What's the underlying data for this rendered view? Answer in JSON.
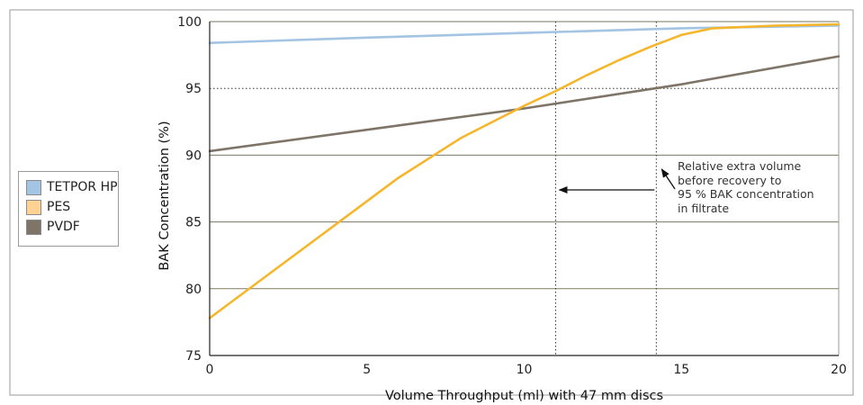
{
  "chart_data": {
    "type": "line",
    "xlabel": "Volume Throughput (ml) with 47 mm discs",
    "ylabel": "BAK Concentration (%)",
    "xlim": [
      0,
      20
    ],
    "ylim": [
      75,
      100
    ],
    "x_ticks": [
      "0",
      "5",
      "10",
      "15",
      "20"
    ],
    "y_ticks": [
      "75",
      "80",
      "85",
      "90",
      "95",
      "100"
    ],
    "grid": "horizontal",
    "legend_position": "left",
    "series": [
      {
        "name": "TETPOR HP",
        "color": "#a3c4e3",
        "x": [
          0,
          5,
          10,
          15,
          20
        ],
        "y": [
          98.4,
          98.8,
          99.15,
          99.5,
          99.7
        ]
      },
      {
        "name": "PES",
        "color": "#f6b62b",
        "x": [
          0,
          2,
          4,
          6,
          8,
          10,
          11,
          12,
          13,
          14,
          15,
          16,
          17,
          18,
          20
        ],
        "y": [
          77.8,
          81.3,
          84.8,
          88.3,
          91.3,
          93.7,
          94.8,
          96.0,
          97.1,
          98.1,
          99.0,
          99.5,
          99.6,
          99.7,
          99.8
        ]
      },
      {
        "name": "PVDF",
        "color": "#7e7468",
        "x": [
          0,
          5,
          10,
          15,
          20
        ],
        "y": [
          90.3,
          91.9,
          93.5,
          95.3,
          97.4
        ]
      }
    ],
    "reference_lines": {
      "horizontal_y": 95,
      "vertical_x": [
        11,
        14.2
      ]
    },
    "annotation": {
      "lines": [
        "Relative extra volume",
        "before recovery to",
        "95 % BAK concentration",
        "in filtrate"
      ]
    }
  }
}
